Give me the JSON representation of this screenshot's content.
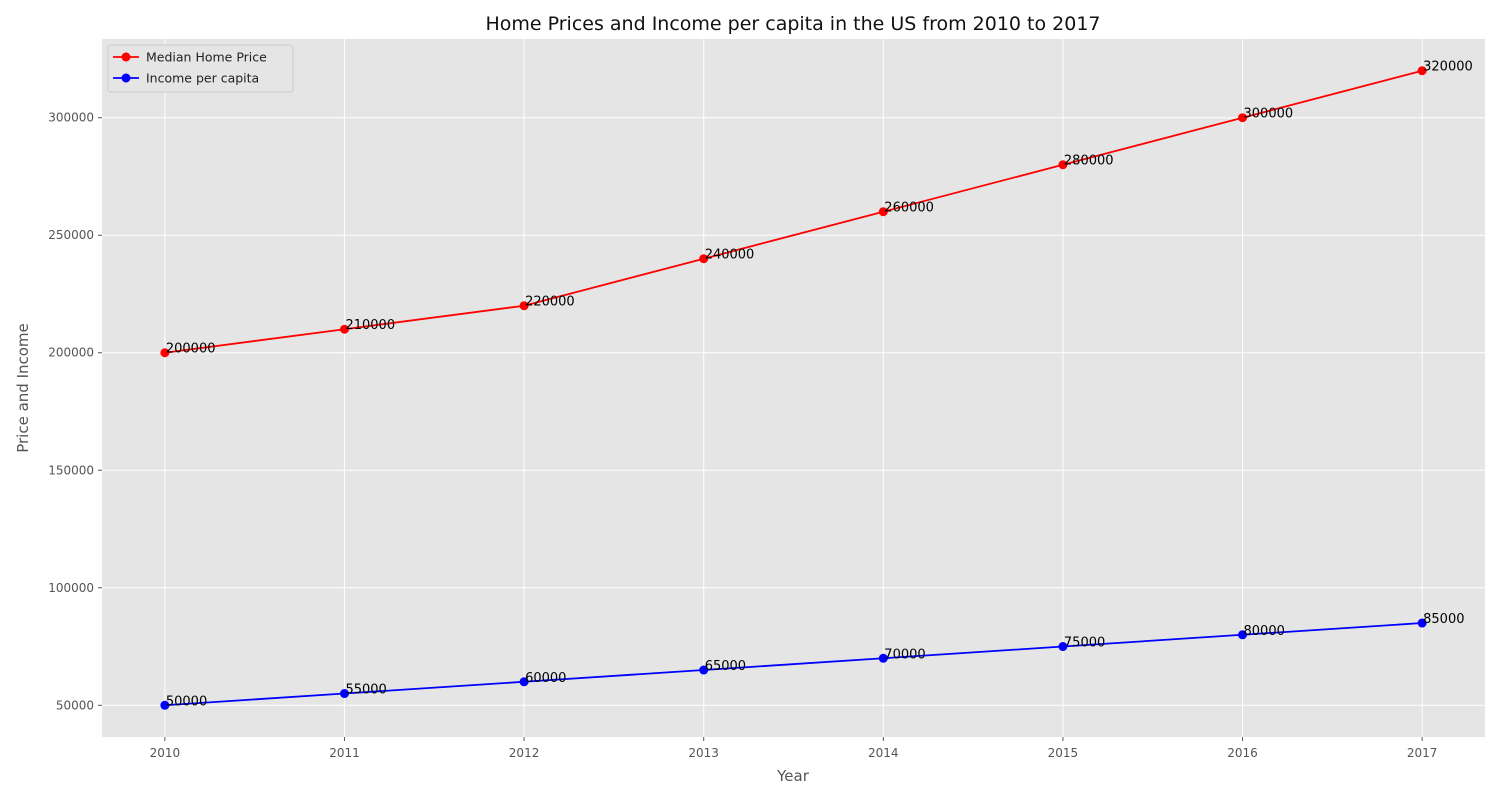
{
  "chart_data": {
    "type": "line",
    "title": "Home Prices and Income per capita in the US from 2010 to 2017",
    "xlabel": "Year",
    "ylabel": "Price and Income",
    "x": [
      2010,
      2011,
      2012,
      2013,
      2014,
      2015,
      2016,
      2017
    ],
    "x_tick_labels": [
      "2010",
      "2011",
      "2012",
      "2013",
      "2014",
      "2015",
      "2016",
      "2017"
    ],
    "y_ticks": [
      50000,
      100000,
      150000,
      200000,
      250000,
      300000
    ],
    "y_tick_labels": [
      "50000",
      "100000",
      "150000",
      "200000",
      "250000",
      "300000"
    ],
    "xlim": [
      2009.65,
      2017.35
    ],
    "ylim": [
      36500,
      333500
    ],
    "grid": true,
    "legend_position": "top-left",
    "series": [
      {
        "name": "Median Home Price",
        "color": "#ff0000",
        "marker": "circle",
        "values": [
          200000,
          210000,
          220000,
          240000,
          260000,
          280000,
          300000,
          320000
        ],
        "data_labels": [
          "200000",
          "210000",
          "220000",
          "240000",
          "260000",
          "280000",
          "300000",
          "320000"
        ]
      },
      {
        "name": "Income per capita",
        "color": "#0000ff",
        "marker": "circle",
        "values": [
          50000,
          55000,
          60000,
          65000,
          70000,
          75000,
          80000,
          85000
        ],
        "data_labels": [
          "50000",
          "55000",
          "60000",
          "65000",
          "70000",
          "75000",
          "80000",
          "85000"
        ]
      }
    ]
  }
}
